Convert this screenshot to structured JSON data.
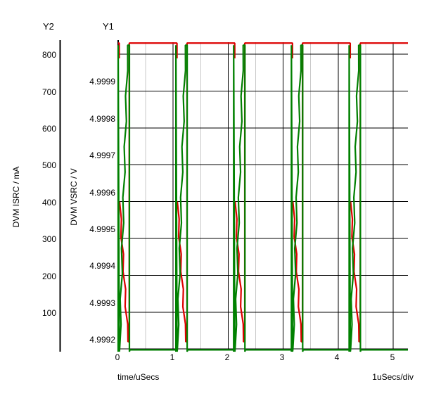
{
  "colors": {
    "background": "#ffffff",
    "trace_vsrc": "#dd0000",
    "trace_isrc": "#008000",
    "grid_major": "#000000",
    "grid_minor": "#c9c9c9",
    "axis_line": "#000000",
    "text": "#000000"
  },
  "axes": {
    "y2": {
      "header": "Y2",
      "title": "DVM ISRC / mA",
      "tick_labels": [
        "800",
        "700",
        "600",
        "500",
        "400",
        "300",
        "200",
        "100"
      ]
    },
    "y1": {
      "header": "Y1",
      "title": "DVM VSRC / V",
      "tick_labels": [
        "4.9999",
        "4.9998",
        "4.9997",
        "4.9996",
        "4.9995",
        "4.9994",
        "4.9993",
        "4.9992"
      ]
    },
    "x": {
      "title": "time/uSecs",
      "scale_label": "1uSecs/div",
      "tick_labels": [
        "0",
        "1",
        "2",
        "3",
        "4",
        "5"
      ]
    }
  },
  "chart_data": {
    "type": "line",
    "title": "",
    "x_axis": {
      "label": "time/uSecs",
      "units": "uSecs",
      "ticks": [
        0,
        1,
        2,
        3,
        4,
        5
      ],
      "range": [
        0,
        5.27
      ],
      "major_grid_step_us": 1.0,
      "minor_grid_step_us": 0.5,
      "per_division": "1uSecs/div"
    },
    "y_axes": [
      {
        "id": "Y1",
        "label": "DVM VSRC / V",
        "units": "V",
        "ticks": [
          4.9999,
          4.9998,
          4.9997,
          4.9996,
          4.9995,
          4.9994,
          4.9993,
          4.9992
        ],
        "top_gridline_value": 5.0,
        "range": [
          4.99915,
          5.00004
        ]
      },
      {
        "id": "Y2",
        "label": "DVM ISRC / mA",
        "units": "mA",
        "ticks": [
          800,
          700,
          600,
          500,
          400,
          300,
          200,
          100
        ],
        "range": [
          0,
          840
        ]
      }
    ],
    "series": [
      {
        "name": "DVM VSRC",
        "axis": "Y1",
        "color": "#dd0000",
        "units": "V",
        "waveform": "idle high; sharp sag at each pulse start, stepped ramp down to minimum during pulse, instant recovery at pulse end",
        "idle_v": 5.00003,
        "sag_knee_v": 4.9996,
        "min_v": 4.99922,
        "pulse_starts_us": [
          0,
          1.05,
          2.1,
          3.15,
          4.2
        ],
        "pulse_width_us": 0.2
      },
      {
        "name": "DVM ISRC",
        "axis": "Y2",
        "color": "#008000",
        "units": "mA",
        "waveform": "zero between pulses; instantaneous full-height spike at pulse start, stepped ramp from 0 to peak during pulse, instant drop to zero at pulse end",
        "idle_ma": 0,
        "peak_ma": 827,
        "pulse_starts_us": [
          0,
          1.05,
          2.1,
          3.15,
          4.2
        ],
        "pulse_width_us": 0.2
      }
    ],
    "grid": {
      "horizontal_lines": 9,
      "legend": "none"
    }
  }
}
